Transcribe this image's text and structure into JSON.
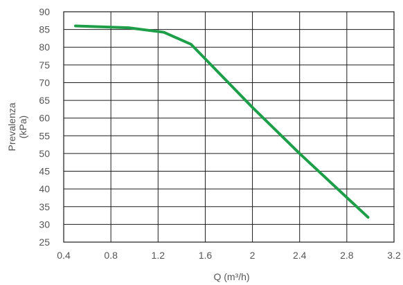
{
  "chart_data": {
    "type": "line",
    "title": "",
    "xlabel": "Q (m³/h)",
    "ylabel_lines": [
      "Prevalenza",
      "(kPa)"
    ],
    "xlim": [
      0.4,
      3.2
    ],
    "ylim": [
      25,
      90
    ],
    "x_ticks": [
      0.4,
      0.8,
      1.2,
      1.6,
      2.0,
      2.4,
      2.8,
      3.2
    ],
    "x_tick_labels": [
      "0.4",
      "0.8",
      "1.2",
      "1.6",
      "2",
      "2.4",
      "2.8",
      "3.2"
    ],
    "y_ticks": [
      25,
      30,
      35,
      40,
      45,
      50,
      55,
      60,
      65,
      70,
      75,
      80,
      85,
      90
    ],
    "y_tick_labels": [
      "25",
      "30",
      "35",
      "40",
      "45",
      "50",
      "55",
      "60",
      "65",
      "70",
      "75",
      "80",
      "85",
      "90"
    ],
    "grid": true,
    "legend": "none",
    "series": [
      {
        "color": "#1e9e48",
        "x": [
          0.5,
          0.95,
          1.25,
          1.48,
          2.0,
          2.4,
          2.98
        ],
        "y": [
          86,
          85.5,
          84.2,
          80.8,
          63,
          50,
          32
        ]
      }
    ]
  }
}
